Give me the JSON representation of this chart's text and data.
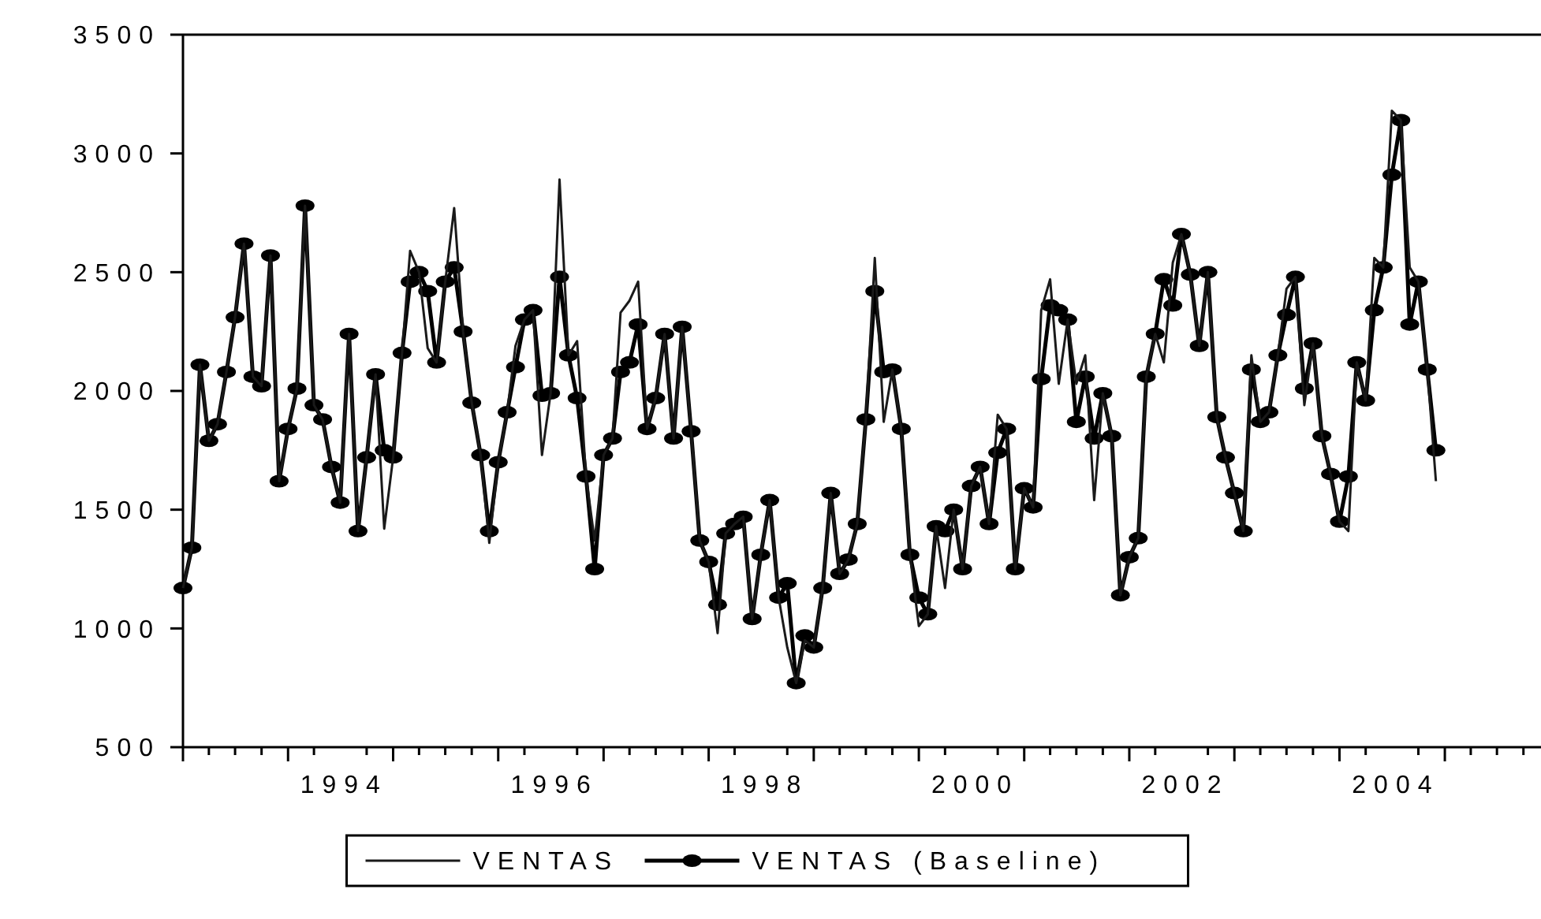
{
  "chart_data": {
    "type": "line",
    "legend": "bottom",
    "grid": false,
    "xlim": [
      "1993-01-01",
      "2005-12-01"
    ],
    "ylim": [
      500,
      3500
    ],
    "yticks": [
      500,
      1000,
      1500,
      2000,
      2500,
      3000,
      3500
    ],
    "xticks": [
      {
        "value": "1993-01-01",
        "label": null
      },
      {
        "value": "1993-04-01",
        "label": null
      },
      {
        "value": "1993-07-01",
        "label": null
      },
      {
        "value": "1993-10-01",
        "label": null
      },
      {
        "value": "1994-01-01",
        "label": null
      },
      {
        "value": "1994-04-01",
        "label": null
      },
      {
        "value": "1994-07-01",
        "label": "1994"
      },
      {
        "value": "1994-10-01",
        "label": null
      },
      {
        "value": "1995-01-01",
        "label": null
      },
      {
        "value": "1995-04-01",
        "label": null
      },
      {
        "value": "1995-07-01",
        "label": null
      },
      {
        "value": "1995-10-01",
        "label": null
      },
      {
        "value": "1996-01-01",
        "label": null
      },
      {
        "value": "1996-04-01",
        "label": null
      },
      {
        "value": "1996-07-01",
        "label": "1996"
      },
      {
        "value": "1996-10-01",
        "label": null
      },
      {
        "value": "1997-01-01",
        "label": null
      },
      {
        "value": "1997-04-01",
        "label": null
      },
      {
        "value": "1997-07-01",
        "label": null
      },
      {
        "value": "1997-10-01",
        "label": null
      },
      {
        "value": "1998-01-01",
        "label": null
      },
      {
        "value": "1998-04-01",
        "label": null
      },
      {
        "value": "1998-07-01",
        "label": "1998"
      },
      {
        "value": "1998-10-01",
        "label": null
      },
      {
        "value": "1999-01-01",
        "label": null
      },
      {
        "value": "1999-04-01",
        "label": null
      },
      {
        "value": "1999-07-01",
        "label": null
      },
      {
        "value": "1999-10-01",
        "label": null
      },
      {
        "value": "2000-01-01",
        "label": null
      },
      {
        "value": "2000-04-01",
        "label": null
      },
      {
        "value": "2000-07-01",
        "label": "2000"
      },
      {
        "value": "2000-10-01",
        "label": null
      },
      {
        "value": "2001-01-01",
        "label": null
      },
      {
        "value": "2001-04-01",
        "label": null
      },
      {
        "value": "2001-07-01",
        "label": null
      },
      {
        "value": "2001-10-01",
        "label": null
      },
      {
        "value": "2002-01-01",
        "label": null
      },
      {
        "value": "2002-04-01",
        "label": null
      },
      {
        "value": "2002-07-01",
        "label": "2002"
      },
      {
        "value": "2002-10-01",
        "label": null
      },
      {
        "value": "2003-01-01",
        "label": null
      },
      {
        "value": "2003-04-01",
        "label": null
      },
      {
        "value": "2003-07-01",
        "label": null
      },
      {
        "value": "2003-10-01",
        "label": null
      },
      {
        "value": "2004-01-01",
        "label": null
      },
      {
        "value": "2004-04-01",
        "label": null
      },
      {
        "value": "2004-07-01",
        "label": "2004"
      },
      {
        "value": "2004-10-01",
        "label": null
      },
      {
        "value": "2005-01-01",
        "label": null
      },
      {
        "value": "2005-04-01",
        "label": null
      },
      {
        "value": "2005-07-01",
        "label": null
      },
      {
        "value": "2005-10-01",
        "label": null
      }
    ],
    "x": [
      "1993-01",
      "1993-02",
      "1993-03",
      "1993-04",
      "1993-05",
      "1993-06",
      "1993-07",
      "1993-08",
      "1993-09",
      "1993-10",
      "1993-11",
      "1993-12",
      "1994-01",
      "1994-02",
      "1994-03",
      "1994-04",
      "1994-05",
      "1994-06",
      "1994-07",
      "1994-08",
      "1994-09",
      "1994-10",
      "1994-11",
      "1994-12",
      "1995-01",
      "1995-02",
      "1995-03",
      "1995-04",
      "1995-05",
      "1995-06",
      "1995-07",
      "1995-08",
      "1995-09",
      "1995-10",
      "1995-11",
      "1995-12",
      "1996-01",
      "1996-02",
      "1996-03",
      "1996-04",
      "1996-05",
      "1996-06",
      "1996-07",
      "1996-08",
      "1996-09",
      "1996-10",
      "1996-11",
      "1996-12",
      "1997-01",
      "1997-02",
      "1997-03",
      "1997-04",
      "1997-05",
      "1997-06",
      "1997-07",
      "1997-08",
      "1997-09",
      "1997-10",
      "1997-11",
      "1997-12",
      "1998-01",
      "1998-02",
      "1998-03",
      "1998-04",
      "1998-05",
      "1998-06",
      "1998-07",
      "1998-08",
      "1998-09",
      "1998-10",
      "1998-11",
      "1998-12",
      "1999-01",
      "1999-02",
      "1999-03",
      "1999-04",
      "1999-05",
      "1999-06",
      "1999-07",
      "1999-08",
      "1999-09",
      "1999-10",
      "1999-11",
      "1999-12",
      "2000-01",
      "2000-02",
      "2000-03",
      "2000-04",
      "2000-05",
      "2000-06",
      "2000-07",
      "2000-08",
      "2000-09",
      "2000-10",
      "2000-11",
      "2000-12",
      "2001-01",
      "2001-02",
      "2001-03",
      "2001-04",
      "2001-05",
      "2001-06",
      "2001-07",
      "2001-08",
      "2001-09",
      "2001-10",
      "2001-11",
      "2001-12",
      "2002-01",
      "2002-02",
      "2002-03",
      "2002-04",
      "2002-05",
      "2002-06",
      "2002-07",
      "2002-08",
      "2002-09",
      "2002-10",
      "2002-11",
      "2002-12",
      "2003-01",
      "2003-02",
      "2003-03",
      "2003-04",
      "2003-05",
      "2003-06",
      "2003-07",
      "2003-08",
      "2003-09",
      "2003-10",
      "2003-11",
      "2003-12",
      "2004-01",
      "2004-02",
      "2004-03",
      "2004-04",
      "2004-05",
      "2004-06",
      "2004-07",
      "2004-08",
      "2004-09",
      "2004-10",
      "2004-11",
      "2004-12"
    ],
    "series": [
      {
        "name": "VENTAS",
        "color": "#1a1a1a",
        "marker": "none",
        "values": [
          1170,
          1340,
          2110,
          1790,
          1860,
          2080,
          2310,
          2620,
          2060,
          2020,
          2570,
          1620,
          1840,
          2010,
          2780,
          1940,
          1880,
          1680,
          1530,
          2240,
          1410,
          1720,
          2070,
          1420,
          1720,
          2160,
          2590,
          2500,
          2180,
          2120,
          2460,
          2770,
          2250,
          1950,
          1730,
          1360,
          1700,
          1910,
          2190,
          2300,
          2340,
          1730,
          1990,
          2890,
          2150,
          2210,
          1640,
          1370,
          1730,
          1800,
          2330,
          2380,
          2460,
          1840,
          1970,
          2240,
          1800,
          2270,
          1830,
          1370,
          1280,
          980,
          1400,
          1440,
          1470,
          1040,
          1310,
          1540,
          1130,
          920,
          770,
          950,
          920,
          1170,
          1570,
          1230,
          1290,
          1440,
          1880,
          2560,
          1870,
          2090,
          1840,
          1310,
          1010,
          1060,
          1430,
          1170,
          1500,
          1250,
          1600,
          1680,
          1440,
          1900,
          1840,
          1250,
          1590,
          1510,
          2340,
          2470,
          2030,
          2300,
          2030,
          2150,
          1540,
          1990,
          1810,
          1140,
          1300,
          1380,
          2060,
          2240,
          2120,
          2540,
          2660,
          2490,
          2190,
          2500,
          1890,
          1720,
          1570,
          1410,
          2150,
          1870,
          1910,
          2150,
          2430,
          2480,
          1940,
          2200,
          1810,
          1650,
          1450,
          1410,
          2120,
          1960,
          2560,
          2520,
          3180,
          3140,
          2520,
          2460,
          2090,
          1620
        ]
      },
      {
        "name": "VENTAS (Baseline)",
        "color": "#000000",
        "marker": "circle",
        "values": [
          1170,
          1340,
          2110,
          1790,
          1860,
          2080,
          2310,
          2620,
          2060,
          2020,
          2570,
          1620,
          1840,
          2010,
          2780,
          1940,
          1880,
          1680,
          1530,
          2240,
          1410,
          1720,
          2070,
          1750,
          1720,
          2160,
          2460,
          2500,
          2420,
          2120,
          2460,
          2520,
          2250,
          1950,
          1730,
          1410,
          1700,
          1910,
          2100,
          2300,
          2340,
          1980,
          1990,
          2480,
          2150,
          1970,
          1640,
          1250,
          1730,
          1800,
          2080,
          2120,
          2280,
          1840,
          1970,
          2240,
          1800,
          2270,
          1830,
          1370,
          1280,
          1100,
          1400,
          1440,
          1470,
          1040,
          1310,
          1540,
          1130,
          1190,
          770,
          970,
          920,
          1170,
          1570,
          1230,
          1290,
          1440,
          1880,
          2420,
          2080,
          2090,
          1840,
          1310,
          1130,
          1060,
          1430,
          1410,
          1500,
          1250,
          1600,
          1680,
          1440,
          1740,
          1840,
          1250,
          1590,
          1510,
          2050,
          2360,
          2340,
          2300,
          1870,
          2060,
          1800,
          1990,
          1810,
          1140,
          1300,
          1380,
          2060,
          2240,
          2470,
          2360,
          2660,
          2490,
          2190,
          2500,
          1890,
          1720,
          1570,
          1410,
          2090,
          1870,
          1910,
          2150,
          2320,
          2480,
          2010,
          2200,
          1810,
          1650,
          1450,
          1640,
          2120,
          1960,
          2340,
          2520,
          2910,
          3140,
          2280,
          2460,
          2090,
          1750
        ]
      }
    ]
  }
}
